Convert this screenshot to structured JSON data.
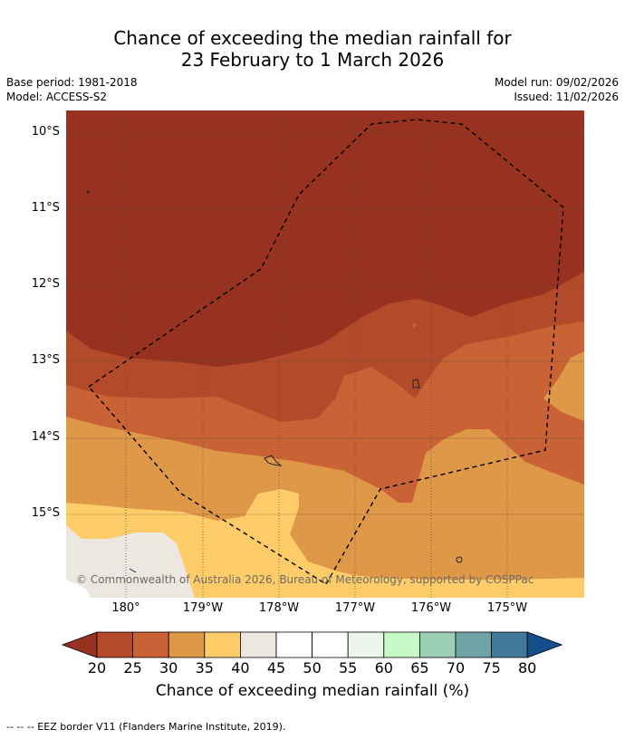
{
  "header": {
    "title_line1": "Chance of exceeding the median rainfall for",
    "title_line2": "23 February to 1 March 2026",
    "base_period": "Base period: 1981-2018",
    "model": "Model: ACCESS-S2",
    "model_run": "Model run: 09/02/2026",
    "issued": "Issued: 11/02/2026"
  },
  "map": {
    "lat_labels": [
      "10°S",
      "11°S",
      "12°S",
      "13°S",
      "14°S",
      "15°S"
    ],
    "lon_labels": [
      "180°",
      "179°W",
      "178°W",
      "177°W",
      "176°W",
      "175°W"
    ],
    "copyright": "© Commonwealth of Australia 2026, Bureau of Meteorology, supported by COSPPac"
  },
  "colorbar": {
    "ticks": [
      "20",
      "25",
      "30",
      "35",
      "40",
      "45",
      "50",
      "55",
      "60",
      "65",
      "70",
      "75",
      "80"
    ],
    "colors": [
      "#983220",
      "#b34a29",
      "#c96234",
      "#df9748",
      "#fecd6a",
      "#ede7e1",
      "#ffffff",
      "#ffffff",
      "#ebf5eb",
      "#c8fac8",
      "#9dcfb7",
      "#6ea4a6",
      "#417a9a",
      "#144e8b"
    ],
    "label": "Chance of exceeding median rainfall (%)"
  },
  "footnote": "--  --  -- EEZ border V11 (Flanders Marine Institute, 2019)."
}
